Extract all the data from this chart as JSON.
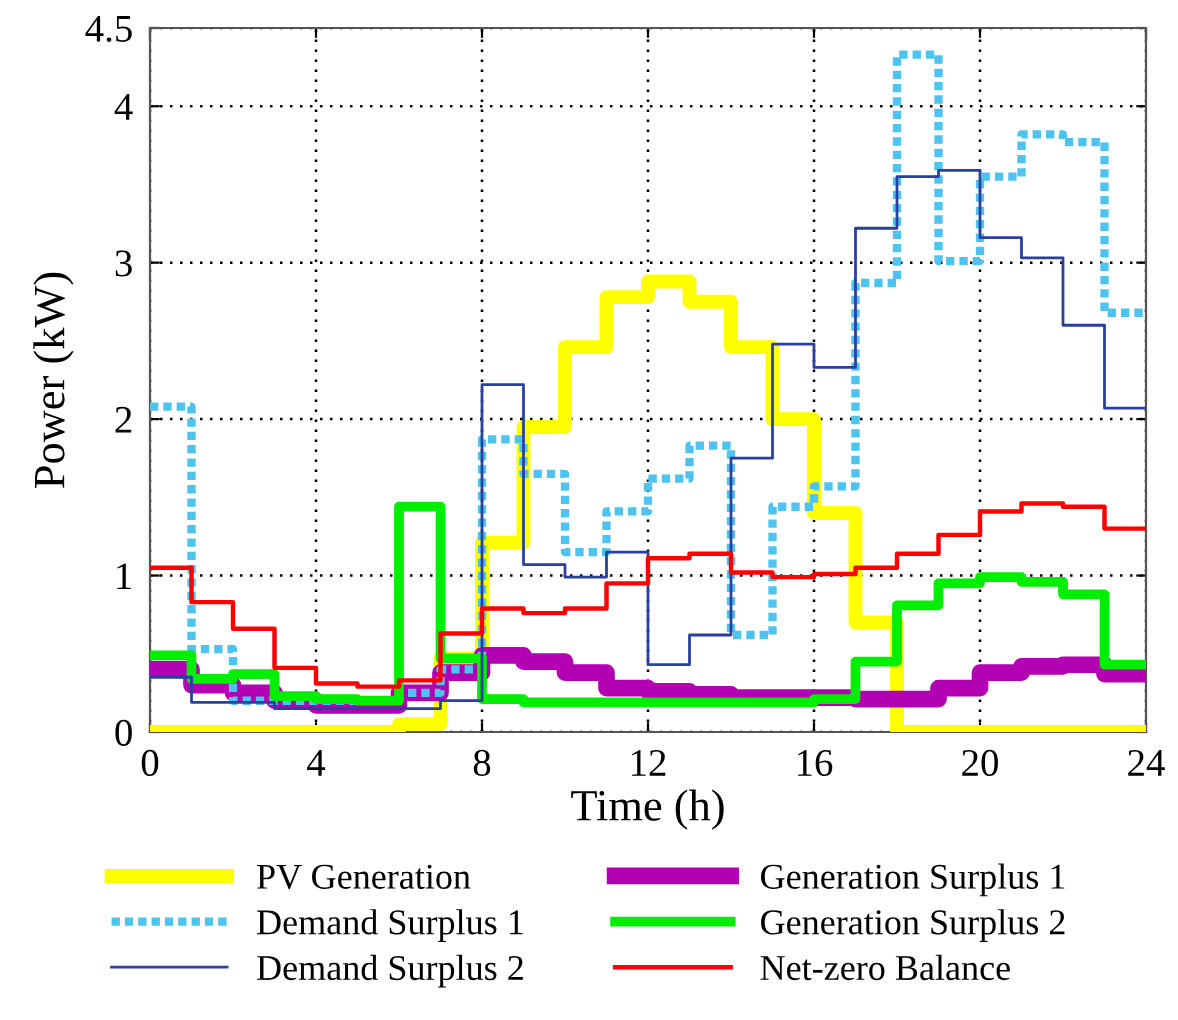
{
  "chart_data": {
    "type": "step",
    "xlabel": "Time (h)",
    "ylabel": "Power (kW)",
    "x": [
      0,
      1,
      2,
      3,
      4,
      5,
      6,
      7,
      8,
      9,
      10,
      11,
      12,
      13,
      14,
      15,
      16,
      17,
      18,
      19,
      20,
      21,
      22,
      23,
      24
    ],
    "xlim": [
      0,
      24
    ],
    "xticks": [
      0,
      4,
      8,
      12,
      16,
      20,
      24
    ],
    "ylim": [
      0,
      4.5
    ],
    "yticks": [
      0,
      1,
      2,
      3,
      4,
      4.5
    ],
    "grid": true,
    "legend": "bottom",
    "series": [
      {
        "name": "PV Generation",
        "color": "#ffff00",
        "line_style": "solid",
        "values": [
          0,
          0,
          0,
          0,
          0,
          0,
          0.05,
          0.47,
          1.21,
          1.95,
          2.46,
          2.78,
          2.88,
          2.75,
          2.46,
          2.0,
          1.4,
          0.7,
          0,
          0,
          0,
          0,
          0,
          0,
          0
        ]
      },
      {
        "name": "Demand Surplus 1",
        "color": "#4fc3f0",
        "line_style": "dotted",
        "values": [
          2.08,
          0.53,
          0.2,
          0.2,
          0.2,
          0.2,
          0.25,
          0.4,
          1.87,
          1.65,
          1.15,
          1.41,
          1.62,
          1.83,
          0.62,
          1.44,
          1.57,
          2.87,
          4.33,
          3.01,
          3.55,
          3.82,
          3.77,
          2.68,
          2.68
        ]
      },
      {
        "name": "Demand Surplus 2",
        "color": "#2b3f9e",
        "line_style": "solid",
        "values": [
          0.35,
          0.19,
          0.19,
          0.15,
          0.15,
          0.15,
          0.15,
          0.2,
          2.22,
          1.07,
          0.99,
          1.15,
          0.43,
          0.62,
          1.75,
          2.48,
          2.33,
          3.22,
          3.55,
          3.59,
          3.16,
          3.03,
          2.6,
          2.07,
          2.07
        ]
      },
      {
        "name": "Generation Surplus 1",
        "color": "#b300b3",
        "line_style": "solid",
        "values": [
          0.4,
          0.3,
          0.25,
          0.2,
          0.17,
          0.17,
          0.25,
          0.38,
          0.49,
          0.45,
          0.38,
          0.28,
          0.26,
          0.24,
          0.22,
          0.22,
          0.22,
          0.21,
          0.21,
          0.28,
          0.38,
          0.42,
          0.43,
          0.37,
          0.37
        ]
      },
      {
        "name": "Generation Surplus 2",
        "color": "#00ee00",
        "line_style": "solid",
        "values": [
          0.49,
          0.34,
          0.37,
          0.23,
          0.21,
          0.2,
          1.44,
          0.47,
          0.21,
          0.19,
          0.19,
          0.19,
          0.19,
          0.19,
          0.19,
          0.19,
          0.21,
          0.45,
          0.81,
          0.95,
          0.99,
          0.96,
          0.88,
          0.43,
          0.43
        ]
      },
      {
        "name": "Net-zero Balance",
        "color": "#ff0000",
        "line_style": "solid",
        "values": [
          1.05,
          0.83,
          0.66,
          0.41,
          0.31,
          0.29,
          0.33,
          0.63,
          0.79,
          0.76,
          0.79,
          0.95,
          1.11,
          1.14,
          1.02,
          0.99,
          1.01,
          1.05,
          1.14,
          1.26,
          1.41,
          1.46,
          1.44,
          1.3,
          1.3
        ]
      }
    ]
  }
}
